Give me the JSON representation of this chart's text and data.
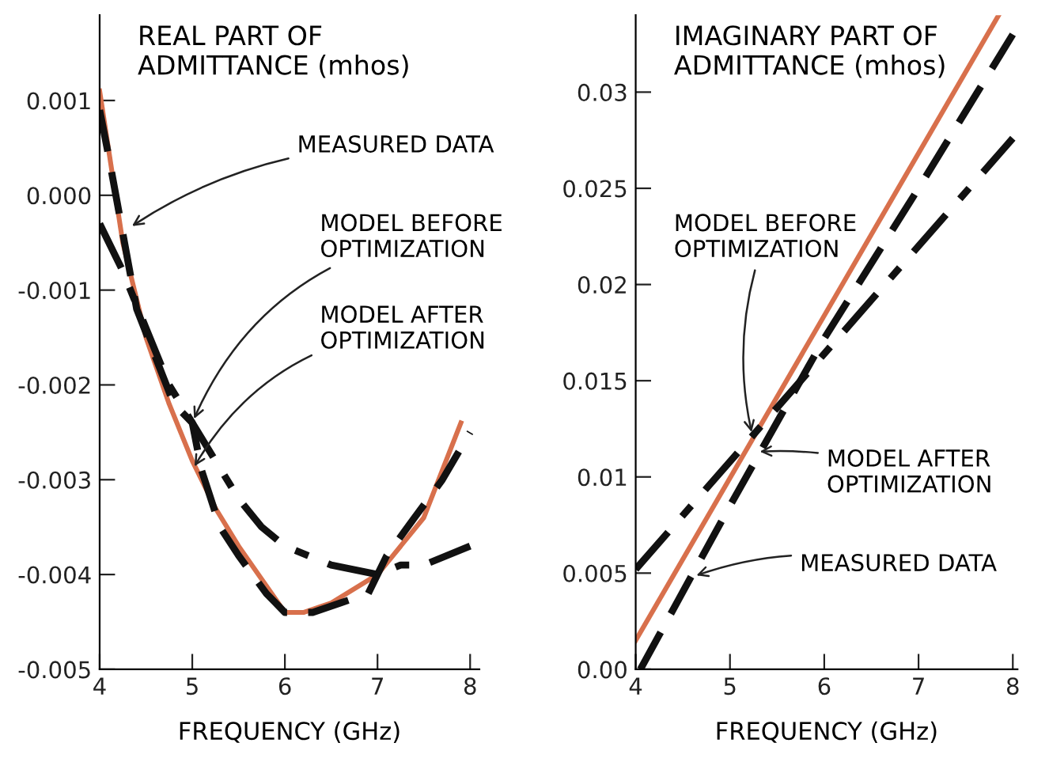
{
  "chart_data": [
    {
      "type": "line",
      "ylabel": "REAL PART OF\nADMITTANCE (mhos)",
      "xlabel": "FREQUENCY (GHz)",
      "xlim": [
        4,
        8.1
      ],
      "ylim": [
        -0.005,
        0.0019
      ],
      "xticks": [
        4,
        5,
        6,
        7,
        8
      ],
      "yticks": [
        {
          "value": -0.005,
          "label": "-0.005"
        },
        {
          "value": -0.004,
          "label": "-0.004"
        },
        {
          "value": -0.003,
          "label": "-0.003"
        },
        {
          "value": -0.002,
          "label": "-0.002"
        },
        {
          "value": -0.001,
          "label": "-0.001"
        },
        {
          "value": 0,
          "label": "0.000"
        },
        0.001
      ],
      "grid": false,
      "legend": false,
      "series": [
        {
          "color": "#d8704c",
          "line_style": "solid",
          "x": [
            4,
            4.25,
            4.5,
            4.75,
            5,
            5.25,
            5.5,
            6,
            6.2,
            6.5,
            7,
            7.5,
            7.9
          ],
          "values": [
            0.0011,
            -0.0005,
            -0.0015,
            -0.0022,
            -0.0028,
            -0.0033,
            -0.0037,
            -0.0044,
            -0.0044,
            -0.0043,
            -0.004,
            -0.0034,
            -0.0024
          ]
        },
        {
          "color": "#111111",
          "line_style": "dashed",
          "x": [
            4,
            4.1,
            4.25,
            4.4,
            4.6,
            4.8,
            5.0,
            5.1,
            5.3,
            5.5,
            5.8,
            6,
            6.3,
            6.6,
            6.9,
            7.1,
            7.4,
            7.7,
            8
          ],
          "values": [
            0.0009,
            0.0004,
            -0.0004,
            -0.0012,
            -0.0017,
            -0.0022,
            -0.0024,
            -0.0029,
            -0.0035,
            -0.0038,
            -0.0042,
            -0.0044,
            -0.0044,
            -0.0043,
            -0.0042,
            -0.0038,
            -0.0034,
            -0.003,
            -0.0025
          ]
        },
        {
          "color": "#111111",
          "line_style": "dashdot",
          "x": [
            4,
            4.25,
            4.5,
            4.75,
            5,
            5.25,
            5.5,
            5.75,
            6,
            6.5,
            7,
            7.25,
            7.5,
            8
          ],
          "values": [
            -0.0003,
            -0.0008,
            -0.0014,
            -0.002,
            -0.0024,
            -0.0028,
            -0.0032,
            -0.0035,
            -0.0037,
            -0.0039,
            -0.004,
            -0.0039,
            -0.0039,
            -0.0037
          ]
        }
      ],
      "annotations": [
        {
          "text": "MEASURED DATA",
          "x": 4.31,
          "y": -0.00035
        },
        {
          "text": "MODEL BEFORE\nOPTIMIZATION",
          "x": 5,
          "y": -0.0024
        },
        {
          "text": "MODEL AFTER\nOPTIMIZATION",
          "x": 5.0,
          "y": -0.0029
        }
      ]
    },
    {
      "type": "line",
      "ylabel": "IMAGINARY PART OF\nADMITTANCE (mhos)",
      "xlabel": "FREQUENCY (GHz)",
      "xlim": [
        4,
        8.05
      ],
      "ylim": [
        0,
        0.034
      ],
      "xticks": [
        4,
        5,
        6,
        7,
        8
      ],
      "yticks": [
        {
          "value": 0,
          "label": "0.00"
        },
        0.005,
        0.01,
        0.015,
        0.02,
        0.025,
        0.03
      ],
      "grid": false,
      "legend": false,
      "series": [
        {
          "color": "#d8704c",
          "line_style": "solid",
          "x": [
            4,
            7.85
          ],
          "values": [
            0.0015,
            0.034
          ]
        },
        {
          "color": "#111111",
          "line_style": "dashed",
          "x": [
            4.05,
            5,
            6,
            7,
            8
          ],
          "values": [
            0.0,
            0.0085,
            0.0172,
            0.025,
            0.033
          ]
        },
        {
          "color": "#111111",
          "line_style": "dashdot",
          "x": [
            4,
            8
          ],
          "values": [
            0.0052,
            0.0276
          ]
        }
      ],
      "annotations": [
        {
          "text": "MODEL BEFORE\nOPTIMIZATION",
          "x": 5.24,
          "y": 0.0121
        },
        {
          "text": "MODEL AFTER\nOPTIMIZATION",
          "x": 5.27,
          "y": 0.0113
        },
        {
          "text": "MEASURED DATA",
          "x": 4.6,
          "y": 0.0048
        }
      ]
    }
  ]
}
